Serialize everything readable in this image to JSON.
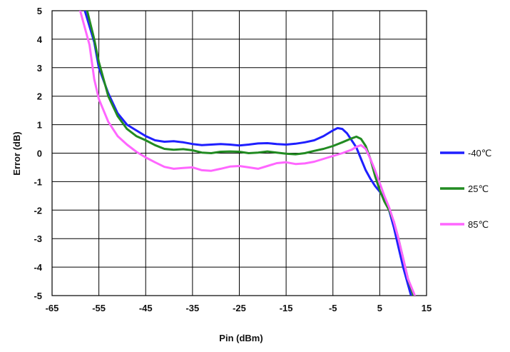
{
  "chart_data": {
    "type": "line",
    "xlabel": "Pin (dBm)",
    "ylabel": "Error (dB)",
    "xlim": [
      -65,
      15
    ],
    "ylim": [
      -5,
      5
    ],
    "x_ticks": [
      -65,
      -55,
      -45,
      -35,
      -25,
      -15,
      -5,
      5,
      15
    ],
    "y_ticks": [
      5,
      4,
      3,
      2,
      1,
      0,
      -1,
      -2,
      -3,
      -4,
      -5
    ],
    "x_tick_labels": [
      "-65",
      "-55",
      "-45",
      "-35",
      "-25",
      "-15",
      "-5",
      "5",
      "15"
    ],
    "y_tick_labels": [
      "5",
      "4",
      "3",
      "2",
      "1",
      "0",
      "-1",
      "-2",
      "-3",
      "-4",
      "-5"
    ],
    "grid": true,
    "legend_position": "right",
    "series": [
      {
        "name": "-40℃",
        "color": "#1f1fff",
        "points": [
          [
            -58.0,
            5.0
          ],
          [
            -56,
            3.9
          ],
          [
            -55,
            3.0
          ],
          [
            -53,
            2.1
          ],
          [
            -51,
            1.4
          ],
          [
            -49,
            1.0
          ],
          [
            -47,
            0.8
          ],
          [
            -45,
            0.6
          ],
          [
            -43,
            0.45
          ],
          [
            -41,
            0.4
          ],
          [
            -39,
            0.42
          ],
          [
            -37,
            0.38
          ],
          [
            -35,
            0.32
          ],
          [
            -33,
            0.28
          ],
          [
            -31,
            0.3
          ],
          [
            -29,
            0.32
          ],
          [
            -27,
            0.3
          ],
          [
            -25,
            0.27
          ],
          [
            -23,
            0.3
          ],
          [
            -21,
            0.34
          ],
          [
            -19,
            0.35
          ],
          [
            -17,
            0.32
          ],
          [
            -15,
            0.3
          ],
          [
            -13,
            0.33
          ],
          [
            -11,
            0.38
          ],
          [
            -9,
            0.45
          ],
          [
            -7,
            0.6
          ],
          [
            -5,
            0.8
          ],
          [
            -4,
            0.88
          ],
          [
            -3,
            0.85
          ],
          [
            -2,
            0.7
          ],
          [
            -1,
            0.45
          ],
          [
            0,
            0.2
          ],
          [
            1,
            -0.2
          ],
          [
            2,
            -0.6
          ],
          [
            3,
            -0.9
          ],
          [
            4,
            -1.15
          ],
          [
            5,
            -1.35
          ],
          [
            6,
            -1.6
          ],
          [
            7,
            -2.0
          ],
          [
            8,
            -2.6
          ],
          [
            9,
            -3.3
          ],
          [
            10,
            -4.0
          ],
          [
            11,
            -4.6
          ],
          [
            11.7,
            -5.0
          ]
        ]
      },
      {
        "name": "25℃",
        "color": "#228b22",
        "points": [
          [
            -57.5,
            5.0
          ],
          [
            -56,
            4.0
          ],
          [
            -55,
            3.2
          ],
          [
            -53,
            2.0
          ],
          [
            -51,
            1.3
          ],
          [
            -49,
            0.85
          ],
          [
            -47,
            0.6
          ],
          [
            -45,
            0.45
          ],
          [
            -43,
            0.28
          ],
          [
            -41,
            0.15
          ],
          [
            -39,
            0.12
          ],
          [
            -37,
            0.14
          ],
          [
            -35,
            0.1
          ],
          [
            -33,
            0.02
          ],
          [
            -31,
            0.0
          ],
          [
            -29,
            0.05
          ],
          [
            -27,
            0.06
          ],
          [
            -25,
            0.05
          ],
          [
            -23,
            0.0
          ],
          [
            -21,
            0.02
          ],
          [
            -19,
            0.06
          ],
          [
            -17,
            0.02
          ],
          [
            -15,
            -0.02
          ],
          [
            -13,
            -0.04
          ],
          [
            -11,
            0.0
          ],
          [
            -9,
            0.08
          ],
          [
            -7,
            0.15
          ],
          [
            -5,
            0.25
          ],
          [
            -3,
            0.38
          ],
          [
            -1,
            0.52
          ],
          [
            0,
            0.58
          ],
          [
            1,
            0.5
          ],
          [
            2,
            0.25
          ],
          [
            3,
            -0.2
          ],
          [
            4,
            -0.8
          ],
          [
            5,
            -1.3
          ],
          [
            6,
            -1.7
          ],
          [
            7,
            -2.0
          ],
          [
            8,
            -2.4
          ],
          [
            9,
            -3.0
          ],
          [
            10,
            -3.7
          ],
          [
            11,
            -4.4
          ],
          [
            12.2,
            -5.0
          ]
        ]
      },
      {
        "name": "85℃",
        "color": "#ff66ff",
        "points": [
          [
            -59.0,
            5.0
          ],
          [
            -57,
            3.8
          ],
          [
            -56,
            2.6
          ],
          [
            -55,
            1.9
          ],
          [
            -53,
            1.1
          ],
          [
            -51,
            0.6
          ],
          [
            -49,
            0.3
          ],
          [
            -47,
            0.05
          ],
          [
            -45,
            -0.15
          ],
          [
            -43,
            -0.32
          ],
          [
            -41,
            -0.48
          ],
          [
            -39,
            -0.55
          ],
          [
            -37,
            -0.52
          ],
          [
            -35,
            -0.5
          ],
          [
            -33,
            -0.6
          ],
          [
            -31,
            -0.62
          ],
          [
            -29,
            -0.55
          ],
          [
            -27,
            -0.47
          ],
          [
            -25,
            -0.45
          ],
          [
            -23,
            -0.5
          ],
          [
            -21,
            -0.55
          ],
          [
            -19,
            -0.45
          ],
          [
            -17,
            -0.35
          ],
          [
            -15,
            -0.32
          ],
          [
            -13,
            -0.38
          ],
          [
            -11,
            -0.36
          ],
          [
            -9,
            -0.3
          ],
          [
            -7,
            -0.2
          ],
          [
            -5,
            -0.1
          ],
          [
            -3,
            0.0
          ],
          [
            -1,
            0.12
          ],
          [
            0,
            0.22
          ],
          [
            1,
            0.28
          ],
          [
            2,
            0.15
          ],
          [
            3,
            -0.2
          ],
          [
            4,
            -0.6
          ],
          [
            5,
            -1.05
          ],
          [
            6,
            -1.5
          ],
          [
            7,
            -1.9
          ],
          [
            8,
            -2.4
          ],
          [
            9,
            -3.0
          ],
          [
            10,
            -3.7
          ],
          [
            11,
            -4.4
          ],
          [
            12.5,
            -5.0
          ]
        ]
      }
    ]
  }
}
